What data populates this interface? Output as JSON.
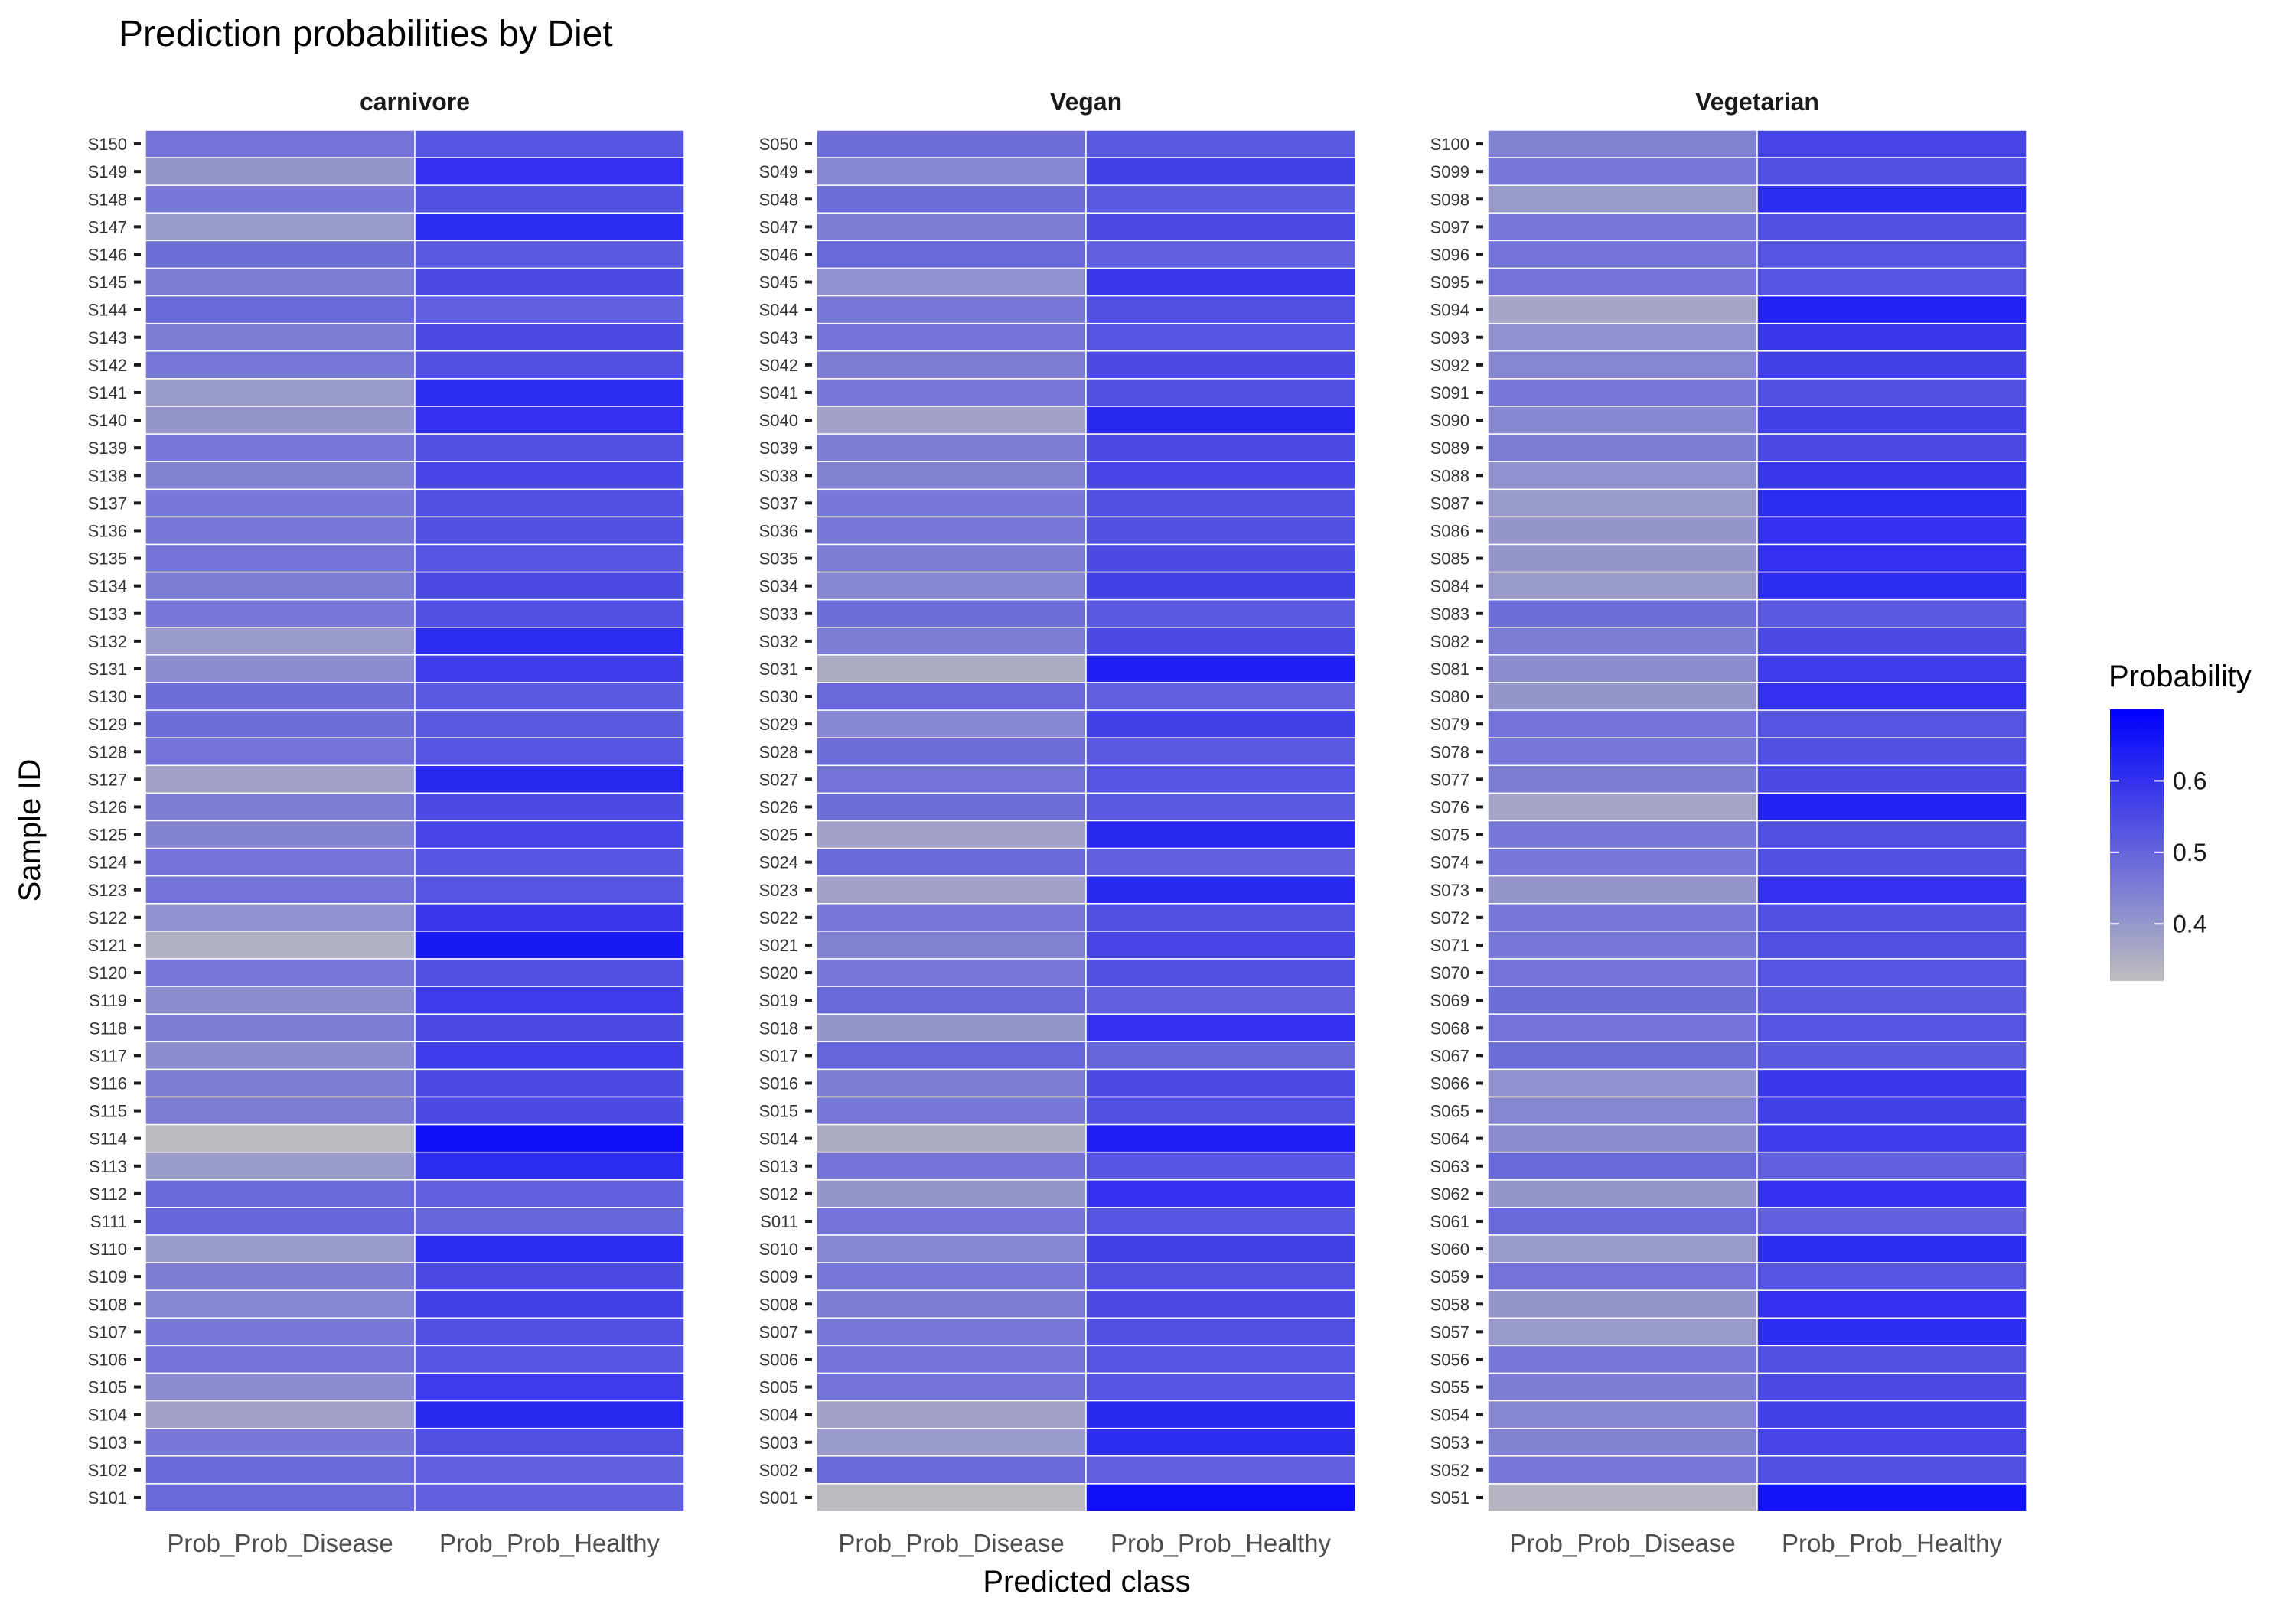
{
  "chart_data": {
    "type": "heatmap",
    "title": "Prediction probabilities by Diet",
    "xlabel": "Predicted class",
    "ylabel": "Sample ID",
    "x_categories": [
      "Prob_Prob_Disease",
      "Prob_Prob_Healthy"
    ],
    "legend": {
      "title": "Probability",
      "position": "right",
      "breaks": [
        0.4,
        0.5,
        0.6
      ],
      "break_labels": [
        "0.4",
        "0.5",
        "0.6"
      ],
      "range": [
        0.32,
        0.7
      ],
      "low_color": "#BEBEBE",
      "high_color": "#0000FF"
    },
    "grid": false,
    "panels": [
      {
        "name": "carnivore",
        "samples": [
          "S150",
          "S149",
          "S148",
          "S147",
          "S146",
          "S145",
          "S144",
          "S143",
          "S142",
          "S141",
          "S140",
          "S139",
          "S138",
          "S137",
          "S136",
          "S135",
          "S134",
          "S133",
          "S132",
          "S131",
          "S130",
          "S129",
          "S128",
          "S127",
          "S126",
          "S125",
          "S124",
          "S123",
          "S122",
          "S121",
          "S120",
          "S119",
          "S118",
          "S117",
          "S116",
          "S115",
          "S114",
          "S113",
          "S112",
          "S111",
          "S110",
          "S109",
          "S108",
          "S107",
          "S106",
          "S105",
          "S104",
          "S103",
          "S102",
          "S101"
        ],
        "disease": [
          0.47,
          0.4,
          0.46,
          0.39,
          0.48,
          0.45,
          0.49,
          0.45,
          0.46,
          0.39,
          0.4,
          0.46,
          0.44,
          0.46,
          0.46,
          0.47,
          0.45,
          0.46,
          0.39,
          0.42,
          0.48,
          0.48,
          0.47,
          0.38,
          0.45,
          0.44,
          0.47,
          0.47,
          0.41,
          0.35,
          0.46,
          0.42,
          0.45,
          0.42,
          0.45,
          0.45,
          0.33,
          0.39,
          0.49,
          0.5,
          0.39,
          0.45,
          0.43,
          0.46,
          0.47,
          0.42,
          0.38,
          0.46,
          0.49,
          0.49
        ]
      },
      {
        "name": "Vegan",
        "samples": [
          "S050",
          "S049",
          "S048",
          "S047",
          "S046",
          "S045",
          "S044",
          "S043",
          "S042",
          "S041",
          "S040",
          "S039",
          "S038",
          "S037",
          "S036",
          "S035",
          "S034",
          "S033",
          "S032",
          "S031",
          "S030",
          "S029",
          "S028",
          "S027",
          "S026",
          "S025",
          "S024",
          "S023",
          "S022",
          "S021",
          "S020",
          "S019",
          "S018",
          "S017",
          "S016",
          "S015",
          "S014",
          "S013",
          "S012",
          "S011",
          "S010",
          "S009",
          "S008",
          "S007",
          "S006",
          "S005",
          "S004",
          "S003",
          "S002",
          "S001"
        ],
        "disease": [
          0.48,
          0.43,
          0.48,
          0.45,
          0.49,
          0.41,
          0.46,
          0.47,
          0.45,
          0.46,
          0.38,
          0.45,
          0.44,
          0.46,
          0.46,
          0.45,
          0.43,
          0.48,
          0.45,
          0.36,
          0.49,
          0.43,
          0.48,
          0.47,
          0.48,
          0.38,
          0.49,
          0.38,
          0.46,
          0.44,
          0.46,
          0.49,
          0.4,
          0.5,
          0.45,
          0.46,
          0.36,
          0.47,
          0.4,
          0.47,
          0.43,
          0.46,
          0.45,
          0.46,
          0.47,
          0.47,
          0.38,
          0.39,
          0.49,
          0.33
        ]
      },
      {
        "name": "Vegetarian",
        "samples": [
          "S100",
          "S099",
          "S098",
          "S097",
          "S096",
          "S095",
          "S094",
          "S093",
          "S092",
          "S091",
          "S090",
          "S089",
          "S088",
          "S087",
          "S086",
          "S085",
          "S084",
          "S083",
          "S082",
          "S081",
          "S080",
          "S079",
          "S078",
          "S077",
          "S076",
          "S075",
          "S074",
          "S073",
          "S072",
          "S071",
          "S070",
          "S069",
          "S068",
          "S067",
          "S066",
          "S065",
          "S064",
          "S063",
          "S062",
          "S061",
          "S060",
          "S059",
          "S058",
          "S057",
          "S056",
          "S055",
          "S054",
          "S053",
          "S052",
          "S051"
        ],
        "disease": [
          0.44,
          0.46,
          0.39,
          0.46,
          0.47,
          0.47,
          0.37,
          0.41,
          0.43,
          0.46,
          0.43,
          0.45,
          0.41,
          0.39,
          0.4,
          0.4,
          0.39,
          0.48,
          0.45,
          0.42,
          0.4,
          0.47,
          0.46,
          0.45,
          0.37,
          0.46,
          0.46,
          0.4,
          0.46,
          0.46,
          0.47,
          0.48,
          0.47,
          0.48,
          0.41,
          0.43,
          0.42,
          0.49,
          0.4,
          0.49,
          0.39,
          0.47,
          0.4,
          0.39,
          0.46,
          0.45,
          0.43,
          0.44,
          0.46,
          0.34
        ]
      }
    ]
  }
}
